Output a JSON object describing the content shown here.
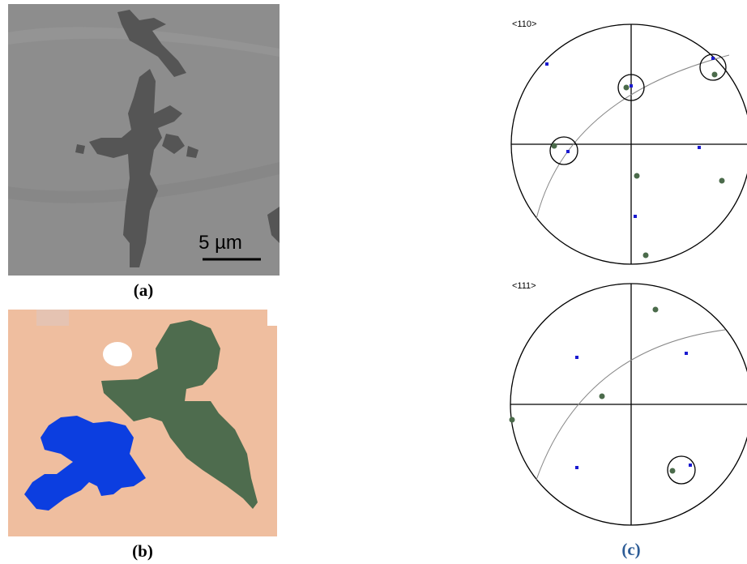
{
  "panel_a": {
    "scale_bar": "5 µm",
    "label": "(a)"
  },
  "panel_b": {
    "label": "(b)"
  },
  "panel_c": {
    "label": "(c)",
    "pole_figures": [
      {
        "label": "<110>"
      },
      {
        "label": "<111>"
      }
    ]
  }
}
